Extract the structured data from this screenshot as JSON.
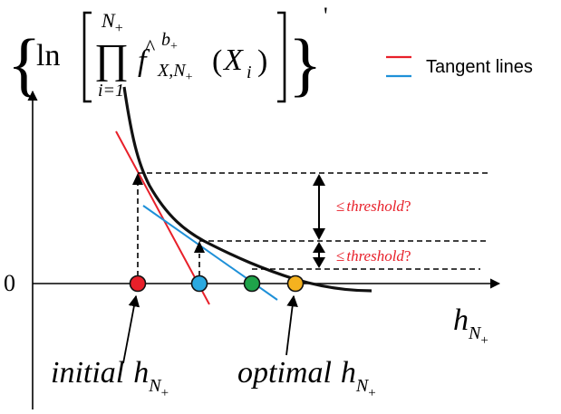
{
  "formula": {
    "ln": "ln",
    "prod": "∏",
    "upper_limit_base": "N",
    "upper_limit_sub": "+",
    "lower_limit": "i=1",
    "f": "f",
    "hat": "^",
    "f_superscript_base": "b",
    "f_superscript_sub": "+",
    "f_subscript": "X,N",
    "f_subscript_sub": "+",
    "arg_open": "(",
    "arg": "X",
    "arg_sub": "i",
    "arg_close": ")",
    "prime": "'"
  },
  "legend": {
    "label": "Tangent lines",
    "colors": [
      "#e8202a",
      "#1e90d8"
    ]
  },
  "axes": {
    "origin_label": "0",
    "x_label_base": "h",
    "x_label_sub_base": "N",
    "x_label_sub_sign": "+"
  },
  "threshold_labels": [
    {
      "symbol": "≤",
      "text": "threshold",
      "q": "?"
    },
    {
      "symbol": "≤",
      "text": "threshold",
      "q": "?"
    }
  ],
  "annotations": {
    "initial_word": "initial",
    "optimal_word": "optimal",
    "h": "h",
    "sub_base": "N",
    "sub_sign": "+"
  },
  "points": [
    {
      "name": "initial-point",
      "color": "#e8202a"
    },
    {
      "name": "second-point",
      "color": "#2aa9e0"
    },
    {
      "name": "third-point",
      "color": "#1fa34a"
    },
    {
      "name": "optimal-point",
      "color": "#f5b21f"
    }
  ],
  "colors": {
    "threshold_text": "#e8202a",
    "tangent_red": "#e8202a",
    "tangent_blue": "#1e90d8",
    "curve": "#111111"
  }
}
